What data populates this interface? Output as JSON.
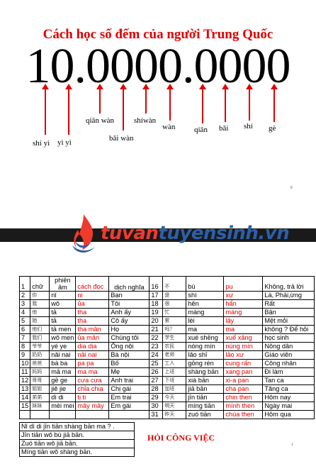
{
  "slide1": {
    "title": "Cách học số đếm của người Trung Quốc",
    "number": "10.0000.0000",
    "labels": [
      {
        "pinyin": "shí yì"
      },
      {
        "pinyin": "yì yì"
      },
      {
        "pinyin": "qiān wàn"
      },
      {
        "pinyin": "bǎi wàn"
      },
      {
        "pinyin": "shíwàn"
      },
      {
        "pinyin": "wàn"
      },
      {
        "pinyin": "qiān"
      },
      {
        "pinyin": "bǎi"
      },
      {
        "pinyin": "shí"
      },
      {
        "pinyin": "gè"
      }
    ],
    "page_number": "6"
  },
  "logo": {
    "part1": "tuvan",
    "part2": "tuyensinh.vn",
    "icon": "flame-logo-icon"
  },
  "slide2": {
    "header": {
      "num": "1",
      "chu": "chữ",
      "phien_am": "phiên âm",
      "cach_doc": "cách đọc",
      "dich_nghia": "dịch nghĩa"
    },
    "left_rows": [
      {
        "num": "2",
        "cn": "你",
        "py": "nǐ",
        "doc": "ni",
        "nghia": "Bạn"
      },
      {
        "num": "3",
        "cn": "我",
        "py": "wǒ",
        "doc": "ủa",
        "nghia": "Tôi"
      },
      {
        "num": "4",
        "cn": "他",
        "py": "tā",
        "doc": "tha",
        "nghia": "Anh ấy"
      },
      {
        "num": "5",
        "cn": "她",
        "py": "tā",
        "doc": "tha",
        "nghia": "Cô ấy"
      },
      {
        "num": "6",
        "cn": "他们",
        "py": "tā men",
        "doc": "tha mân",
        "nghia": "Họ"
      },
      {
        "num": "7",
        "cn": "我们",
        "py": "wǒ men",
        "doc": "ủa mân",
        "nghia": "Chúng tôi"
      },
      {
        "num": "8",
        "cn": "爷爷",
        "py": "yé ye",
        "doc": "dia dịa",
        "nghia": "Ông nội"
      },
      {
        "num": "9",
        "cn": "奶奶",
        "py": "nǎi nai",
        "doc": "nải nai",
        "nghia": "Bà nội"
      },
      {
        "num": "10",
        "cn": "爸爸",
        "py": "bà ba",
        "doc": "pa pa",
        "nghia": "Bố"
      },
      {
        "num": "11",
        "cn": "妈妈",
        "py": "mā ma",
        "doc": "ma ma",
        "nghia": "Mẹ"
      },
      {
        "num": "12",
        "cn": "哥哥",
        "py": "gē ge",
        "doc": "cưa cựa",
        "nghia": "Anh trai"
      },
      {
        "num": "13",
        "cn": "姐姐",
        "py": "jiě jie",
        "doc": "chỉa chia",
        "nghia": "Chị gái"
      },
      {
        "num": "14",
        "cn": "弟弟",
        "py": "dì di",
        "doc": "tị ti",
        "nghia": "Em trai"
      },
      {
        "num": "15",
        "cn": "妹妹",
        "py": "mèi mei",
        "doc": "mây mây",
        "nghia": "Em gái"
      }
    ],
    "right_rows": [
      {
        "num": "16",
        "cn": "不",
        "py": "bù",
        "doc": "pu",
        "nghia": "Không, trả lời"
      },
      {
        "num": "17",
        "cn": "是",
        "py": "shì",
        "doc": "xự",
        "nghia": "Là, Phải,ừng"
      },
      {
        "num": "18",
        "cn": "很",
        "py": "hěn",
        "doc": "hẩn",
        "nghia": "Rất"
      },
      {
        "num": "19",
        "cn": "忙",
        "py": "máng",
        "doc": "máng",
        "nghia": "Bận"
      },
      {
        "num": "20",
        "cn": "累",
        "py": "lèi",
        "doc": "lậy",
        "nghia": "Mệt mỏi"
      },
      {
        "num": "21",
        "cn": "吗？",
        "py": "ma",
        "doc": "ma",
        "nghia": "không ? Để hỏi"
      },
      {
        "num": "22",
        "cn": "学生",
        "py": "xué shēng",
        "doc": "xuế xâng",
        "nghia": "học sinh"
      },
      {
        "num": "23",
        "cn": "农民",
        "py": "nóng mín",
        "doc": "núng mín",
        "nghia": "Nông dân"
      },
      {
        "num": "24",
        "cn": "老师",
        "py": "lǎo shī",
        "doc": "lảo xư",
        "nghia": "Giáo viên"
      },
      {
        "num": "25",
        "cn": "工人",
        "py": "gōng rén",
        "doc": "cung rấn",
        "nghia": "Công nhân"
      },
      {
        "num": "26",
        "cn": "上班",
        "py": "shàng bān",
        "doc": "xang pan",
        "nghia": "Đi làm"
      },
      {
        "num": "27",
        "cn": "下班",
        "py": "xià bān",
        "doc": "xi-a pan",
        "nghia": "Tan ca"
      },
      {
        "num": "28",
        "cn": "加班",
        "py": "jiā bān",
        "doc": "cha pan",
        "nghia": "Tăng ca"
      },
      {
        "num": "29",
        "cn": "今天",
        "py": "jīn tiān",
        "doc": "chin then",
        "nghia": "Hôm nay"
      },
      {
        "num": "30",
        "cn": "明天",
        "py": "míng tiān",
        "doc": "mính then",
        "nghia": "Ngày mai"
      },
      {
        "num": "31",
        "cn": "昨天",
        "py": "zuó tiān",
        "doc": "chúa then",
        "nghia": "Hôm qua"
      }
    ],
    "conversation": [
      "Nǐ dì di jīn tiān shàng bān ma ?  .",
      "Jīn tiān wǒ bù jiā bān.",
      "Zuó tiān wǒ jiā bān.",
      "Míng tiān wǒ shàng bān."
    ],
    "section_title": "HỎI CÔNG VIỆC",
    "page_number": "7"
  }
}
